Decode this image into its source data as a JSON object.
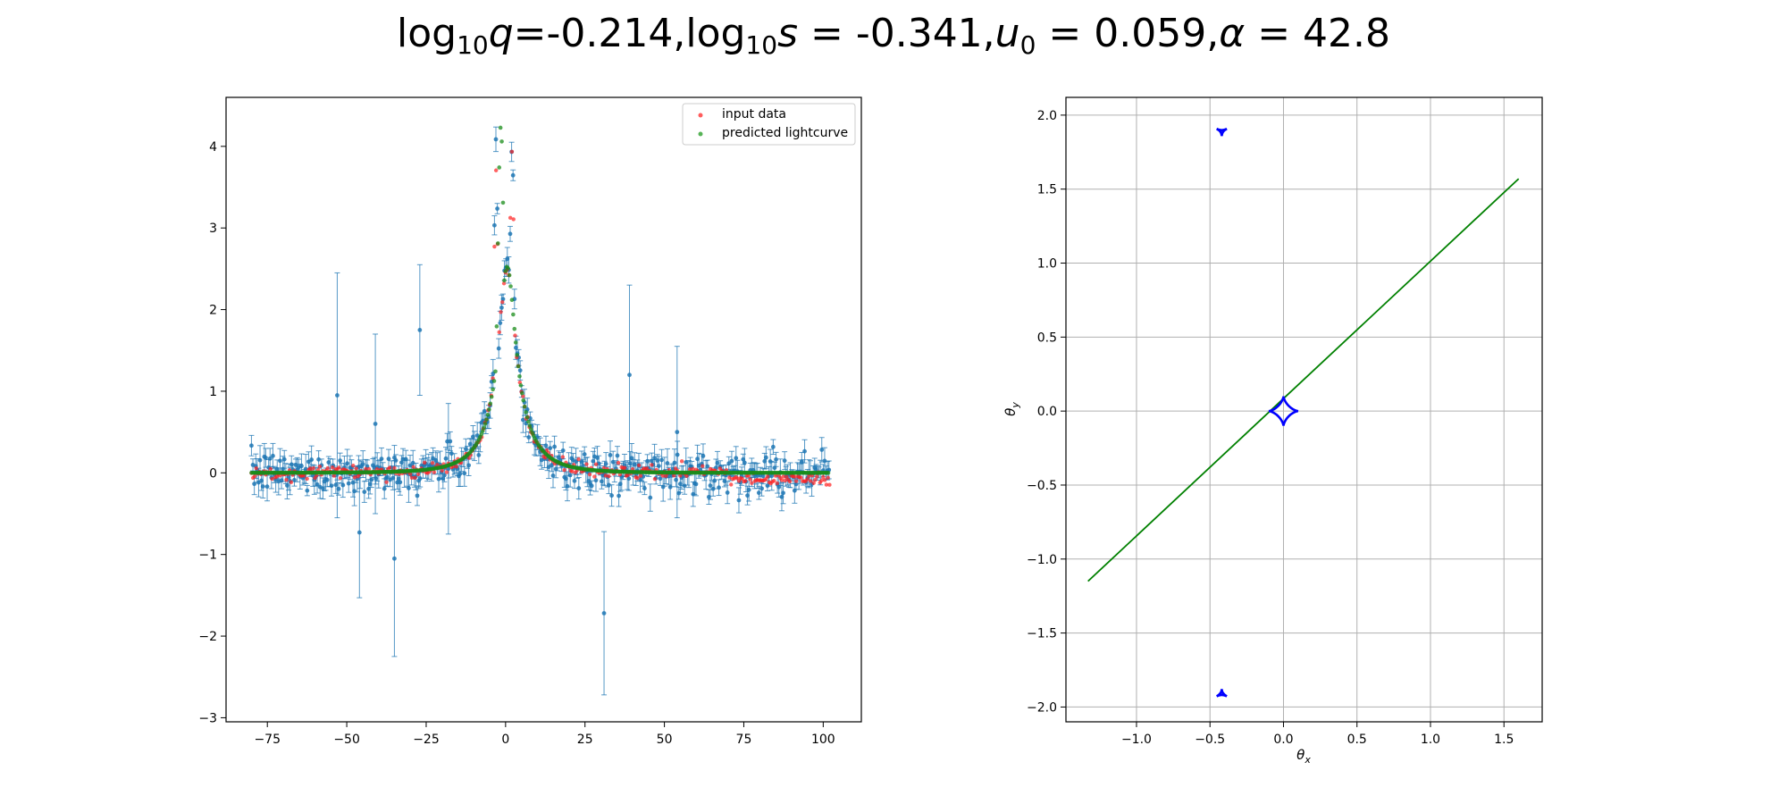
{
  "figure": {
    "title_parts": {
      "q_label": "log",
      "q_sub": "10",
      "q_var": "q",
      "q_value": "=-0.214,",
      "s_label": "log",
      "s_sub": "10",
      "s_var": "s",
      "s_value": " = -0.341,",
      "u_var": "u",
      "u_sub": "0",
      "u_value": " = 0.059,",
      "alpha_var": "α",
      "alpha_value": " = 42.8"
    }
  },
  "chart_data": [
    {
      "type": "scatter",
      "xlim": [
        -88,
        112
      ],
      "ylim": [
        -3.05,
        4.6
      ],
      "x_ticks": [
        -75,
        -50,
        -25,
        0,
        25,
        50,
        75,
        100
      ],
      "y_ticks": [
        -3,
        -2,
        -1,
        0,
        1,
        2,
        3,
        4
      ],
      "legend": {
        "placement": "top-right",
        "entries": [
          {
            "label": "input data",
            "color": "#ff3333"
          },
          {
            "label": "predicted lightcurve",
            "color": "#2ca02c"
          }
        ]
      },
      "errorbar_series": {
        "name": "",
        "color": "#1f77b4",
        "note_points": [
          {
            "x": -53,
            "y": 0.95,
            "err": 1.5
          },
          {
            "x": -46,
            "y": -0.73,
            "err": 0.8
          },
          {
            "x": -41,
            "y": 0.6,
            "err": 1.1
          },
          {
            "x": -35,
            "y": -1.05,
            "err": 1.2
          },
          {
            "x": -27,
            "y": 1.75,
            "err": 0.8
          },
          {
            "x": -18,
            "y": 0.05,
            "err": 0.8
          },
          {
            "x": 31,
            "y": -1.72,
            "err": 1.0
          },
          {
            "x": 39,
            "y": 1.2,
            "err": 1.1
          },
          {
            "x": 54,
            "y": 0.5,
            "err": 1.05
          }
        ]
      },
      "model": {
        "t0": 0.5,
        "tE": 13.0,
        "u0": 0.2,
        "baseline": 0.0,
        "peak_left_x": -3.0,
        "peak_left_y": 3.9,
        "peak_right_x": 2.0,
        "peak_right_y": 4.0,
        "predicted_peak_y": 4.25
      }
    },
    {
      "type": "line",
      "xlim": [
        -1.48,
        1.76
      ],
      "ylim": [
        -2.1,
        2.12
      ],
      "x_ticks": [
        -1.0,
        -0.5,
        0.0,
        0.5,
        1.0,
        1.5
      ],
      "y_ticks": [
        -2.0,
        -1.5,
        -1.0,
        -0.5,
        0.0,
        0.5,
        1.0,
        1.5,
        2.0
      ],
      "x_ticklabels": [
        "−1.0",
        "−0.5",
        "0.0",
        "0.5",
        "1.0",
        "1.5"
      ],
      "y_ticklabels": [
        "−2.0",
        "−1.5",
        "−1.0",
        "−0.5",
        "0.0",
        "0.5",
        "1.0",
        "1.5",
        "2.0"
      ],
      "xlabel": "θx",
      "ylabel": "θy",
      "grid": true,
      "trajectory": {
        "color": "#008000",
        "x": [
          -1.33,
          1.6
        ],
        "y": [
          -1.15,
          1.57
        ]
      },
      "caustics": {
        "color": "#0000ff",
        "central": {
          "cx": 0.0,
          "cy": 0.0,
          "r": 0.1
        },
        "upper": {
          "cx": -0.42,
          "cy": 1.89,
          "r": 0.035
        },
        "lower": {
          "cx": -0.42,
          "cy": -1.91,
          "r": 0.035
        }
      }
    }
  ]
}
